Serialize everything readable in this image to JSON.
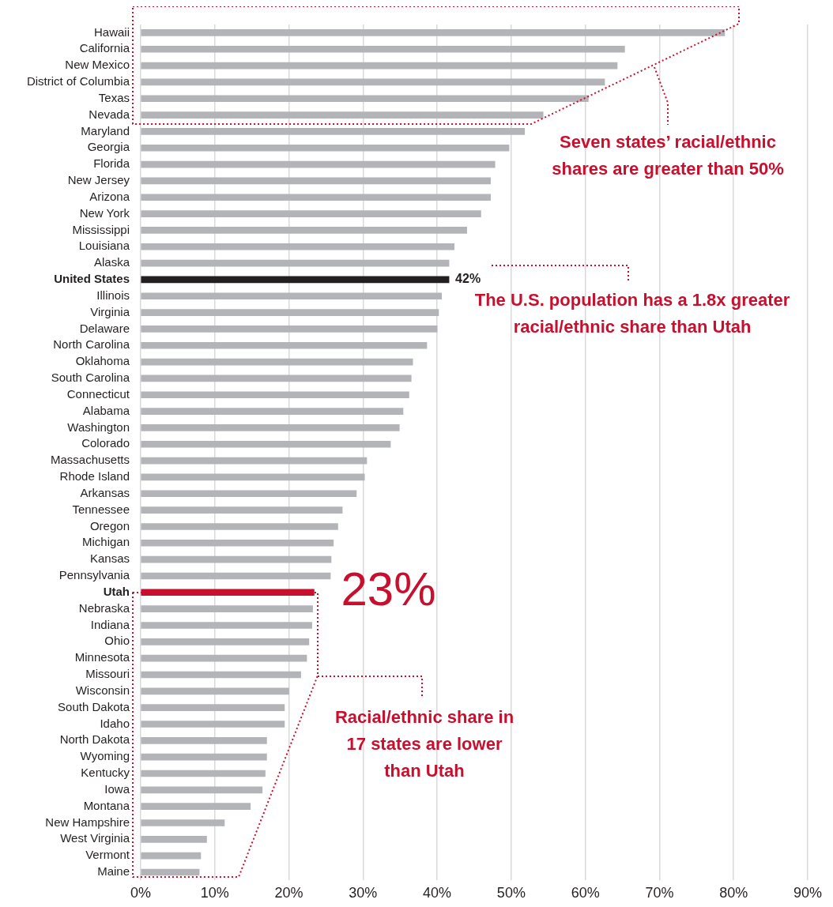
{
  "chart_data": {
    "type": "bar",
    "orientation": "horizontal",
    "categories": [
      "Hawaii",
      "California",
      "New Mexico",
      "District of Columbia",
      "Texas",
      "Nevada",
      "Maryland",
      "Georgia",
      "Florida",
      "New Jersey",
      "Arizona",
      "New York",
      "Mississippi",
      "Louisiana",
      "Alaska",
      "United States",
      "Illinois",
      "Virginia",
      "Delaware",
      "North Carolina",
      "Oklahoma",
      "South Carolina",
      "Connecticut",
      "Alabama",
      "Washington",
      "Colorado",
      "Massachusetts",
      "Rhode Island",
      "Arkansas",
      "Tennessee",
      "Oregon",
      "Michigan",
      "Kansas",
      "Pennsylvania",
      "Utah",
      "Nebraska",
      "Indiana",
      "Ohio",
      "Minnesota",
      "Missouri",
      "Wisconsin",
      "South Dakota",
      "Idaho",
      "North Dakota",
      "Wyoming",
      "Kentucky",
      "Iowa",
      "Montana",
      "New Hampshire",
      "West Virginia",
      "Vermont",
      "Maine"
    ],
    "values": [
      78.8,
      65.3,
      64.3,
      62.6,
      60.4,
      54.3,
      51.8,
      49.7,
      47.8,
      47.2,
      47.2,
      45.9,
      44.0,
      42.3,
      41.6,
      41.6,
      40.6,
      40.2,
      40.0,
      38.6,
      36.7,
      36.5,
      36.2,
      35.4,
      34.9,
      33.7,
      30.5,
      30.2,
      29.1,
      27.2,
      26.6,
      26.0,
      25.7,
      25.6,
      23.4,
      23.2,
      23.1,
      22.7,
      22.4,
      21.6,
      20.0,
      19.4,
      19.4,
      17.0,
      17.0,
      16.8,
      16.4,
      14.8,
      11.3,
      8.9,
      8.1,
      7.9
    ],
    "colors": [
      "#b3b4b8",
      "#b3b4b8",
      "#b3b4b8",
      "#b3b4b8",
      "#b3b4b8",
      "#b3b4b8",
      "#b3b4b8",
      "#b3b4b8",
      "#b3b4b8",
      "#b3b4b8",
      "#b3b4b8",
      "#b3b4b8",
      "#b3b4b8",
      "#b3b4b8",
      "#b3b4b8",
      "#231f20",
      "#b3b4b8",
      "#b3b4b8",
      "#b3b4b8",
      "#b3b4b8",
      "#b3b4b8",
      "#b3b4b8",
      "#b3b4b8",
      "#b3b4b8",
      "#b3b4b8",
      "#b3b4b8",
      "#b3b4b8",
      "#b3b4b8",
      "#b3b4b8",
      "#b3b4b8",
      "#b3b4b8",
      "#b3b4b8",
      "#b3b4b8",
      "#b3b4b8",
      "#c8102e",
      "#b3b4b8",
      "#b3b4b8",
      "#b3b4b8",
      "#b3b4b8",
      "#b3b4b8",
      "#b3b4b8",
      "#b3b4b8",
      "#b3b4b8",
      "#b3b4b8",
      "#b3b4b8",
      "#b3b4b8",
      "#b3b4b8",
      "#b3b4b8",
      "#b3b4b8",
      "#b3b4b8",
      "#b3b4b8",
      "#b3b4b8"
    ],
    "value_labels": [
      null,
      null,
      null,
      null,
      null,
      null,
      null,
      null,
      null,
      null,
      null,
      null,
      null,
      null,
      null,
      "42%",
      null,
      null,
      null,
      null,
      null,
      null,
      null,
      null,
      null,
      null,
      null,
      null,
      null,
      null,
      null,
      null,
      null,
      null,
      "23%",
      null,
      null,
      null,
      null,
      null,
      null,
      null,
      null,
      null,
      null,
      null,
      null,
      null,
      null,
      null,
      null,
      null
    ],
    "xlim": [
      0,
      90
    ],
    "xticks": [
      {
        "value": 0,
        "label": "0%"
      },
      {
        "value": 10,
        "label": "10%"
      },
      {
        "value": 20,
        "label": "20%"
      },
      {
        "value": 30,
        "label": "30%"
      },
      {
        "value": 40,
        "label": "40%"
      },
      {
        "value": 50,
        "label": "50%"
      },
      {
        "value": 60,
        "label": "60%"
      },
      {
        "value": 70,
        "label": "70%"
      },
      {
        "value": 80,
        "label": "80%"
      },
      {
        "value": 90,
        "label": "90%"
      }
    ],
    "grid": "x",
    "annotations": [
      "Seven states’ racial/ethnic shares are greater than 50%",
      "The U.S. population has a 1.8x greater racial/ethnic share than Utah",
      "Racial/ethnic share in 17 states are lower than Utah"
    ]
  }
}
